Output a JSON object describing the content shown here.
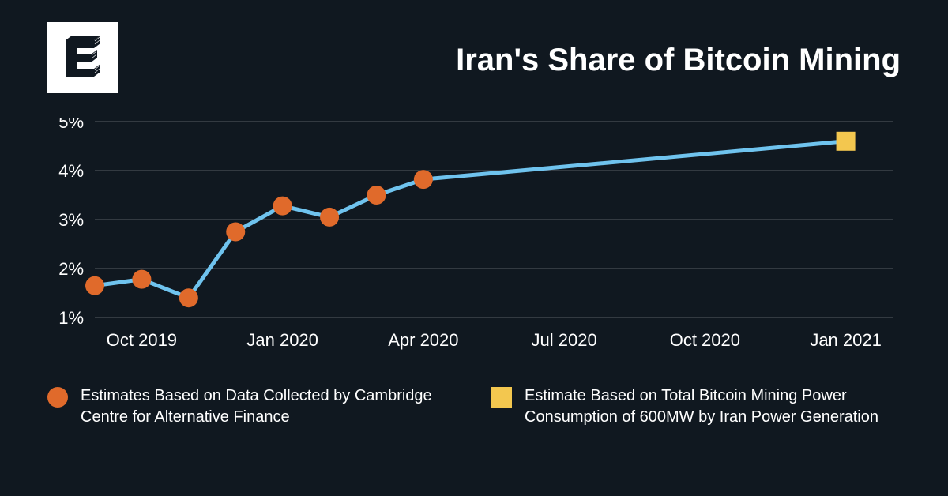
{
  "title": "Iran's Share of Bitcoin Mining",
  "chart": {
    "type": "line",
    "background_color": "#101820",
    "line_color": "#6fc3ee",
    "line_width": 5,
    "grid_color": "#6e7379",
    "grid_width": 0.7,
    "y_axis": {
      "ticks": [
        1,
        2,
        3,
        4,
        5
      ],
      "labels": [
        "1%",
        "2%",
        "3%",
        "4%",
        "5%"
      ],
      "fontsize": 22,
      "color": "#ffffff"
    },
    "x_axis": {
      "labels": [
        "Oct 2019",
        "Jan 2020",
        "Apr 2020",
        "Jul 2020",
        "Oct 2020",
        "Jan 2021"
      ],
      "positions_months": [
        1,
        4,
        7,
        10,
        13,
        16
      ],
      "domain_months": [
        0,
        17
      ],
      "fontsize": 22,
      "color": "#ffffff"
    },
    "series_line": {
      "months": [
        0,
        1,
        2,
        3,
        4,
        5,
        6,
        7,
        16
      ],
      "values": [
        1.65,
        1.78,
        1.4,
        2.75,
        3.28,
        3.05,
        3.5,
        3.82,
        4.6
      ]
    },
    "markers_circle": {
      "months": [
        0,
        1,
        2,
        3,
        4,
        5,
        6,
        7
      ],
      "values": [
        1.65,
        1.78,
        1.4,
        2.75,
        3.28,
        3.05,
        3.5,
        3.82
      ],
      "color": "#e06a2b",
      "radius": 12
    },
    "markers_square": {
      "months": [
        16
      ],
      "values": [
        4.6
      ],
      "color": "#f3c74f",
      "size": 24
    }
  },
  "legend": {
    "item1": {
      "text": "Estimates Based on Data Collected by Cambridge Centre for Alternative Finance",
      "marker_color": "#e06a2b",
      "marker_shape": "circle"
    },
    "item2": {
      "text": "Estimate Based on Total Bitcoin Mining Power Consumption of 600MW by Iran Power Generation",
      "marker_color": "#f3c74f",
      "marker_shape": "square"
    }
  },
  "colors": {
    "background": "#101820",
    "text": "#ffffff"
  }
}
